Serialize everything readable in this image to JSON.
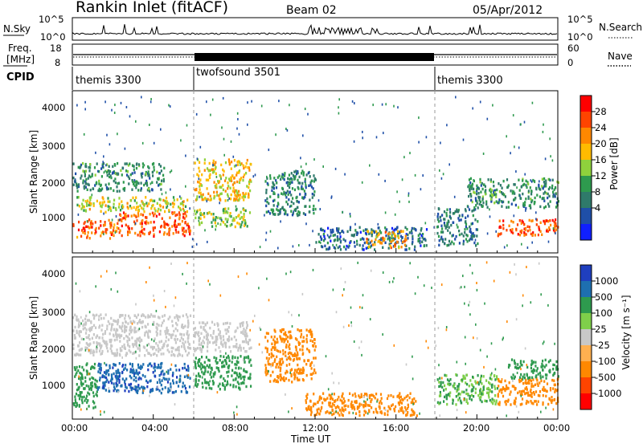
{
  "header": {
    "station": "Rankin Inlet (fitACF)",
    "beam": "Beam 02",
    "date": "05/Apr/2012"
  },
  "nsky_panel": {
    "left_label": "N.Sky",
    "right_label": "N.Search",
    "left_ticks": [
      "10^5",
      "10^0"
    ],
    "right_ticks": [
      "10^5",
      "10^0"
    ]
  },
  "freq_panel": {
    "left_label_1": "Freq.",
    "left_label_2": "[MHz]",
    "right_label": "Nave",
    "left_ticks": [
      "18",
      "8"
    ],
    "right_ticks": [
      "60",
      "0"
    ]
  },
  "cpid_panel": {
    "label": "CPID",
    "segments": [
      {
        "name": "themis 3300",
        "start_hour": 0
      },
      {
        "name": "twofsound 3501",
        "start_hour": 6
      },
      {
        "name": "themis 3300",
        "start_hour": 18
      }
    ]
  },
  "power_panel": {
    "ylabel": "Slant Range [km]",
    "yticks": [
      "4000",
      "3000",
      "2000",
      "1000"
    ],
    "colorbar_label": "Power [dB]",
    "colorbar_ticks": [
      "28",
      "24",
      "20",
      "16",
      "12",
      "8",
      "4"
    ],
    "colors": [
      "#ff0000",
      "#ff4400",
      "#ff8800",
      "#ffbb00",
      "#8fd23c",
      "#2e9a4e",
      "#2f7a6a",
      "#1f4fa8",
      "#1020ff"
    ]
  },
  "velocity_panel": {
    "ylabel": "Slant Range [km]",
    "yticks": [
      "4000",
      "3000",
      "2000",
      "1000"
    ],
    "colorbar_label": "Velocity [m s⁻¹]",
    "colorbar_ticks": [
      "1000",
      "500",
      "100",
      "25",
      "-25",
      "-100",
      "-500",
      "-1000"
    ],
    "colors": [
      "#1f3fbf",
      "#1e6fb0",
      "#2e9a4e",
      "#7fcf4a",
      "#c8c8c8",
      "#ffb050",
      "#ff8800",
      "#ff4400",
      "#ff0000"
    ]
  },
  "xaxis": {
    "label": "Time UT",
    "ticks": [
      "00:00",
      "04:00",
      "08:00",
      "12:00",
      "16:00",
      "20:00",
      "00:00"
    ]
  },
  "chart_data": {
    "type": "heatmap",
    "x_range_hours": [
      0,
      24
    ],
    "y_range_km": [
      180,
      4500
    ],
    "power_regions": [
      {
        "t": [
          0.0,
          2.3
        ],
        "range_km": [
          600,
          1100
        ],
        "power_db": 26
      },
      {
        "t": [
          2.3,
          5.8
        ],
        "range_km": [
          650,
          1300
        ],
        "power_db": 27
      },
      {
        "t": [
          0.2,
          5.8
        ],
        "range_km": [
          1300,
          1700
        ],
        "power_db": 18
      },
      {
        "t": [
          0.0,
          4.5
        ],
        "range_km": [
          1850,
          2600
        ],
        "power_db": 10
      },
      {
        "t": [
          6.0,
          8.8
        ],
        "range_km": [
          900,
          1400
        ],
        "power_db": 16
      },
      {
        "t": [
          6.0,
          8.8
        ],
        "range_km": [
          1600,
          2700
        ],
        "power_db": 20
      },
      {
        "t": [
          9.5,
          12.0
        ],
        "range_km": [
          1200,
          2400
        ],
        "power_db": 9
      },
      {
        "t": [
          12.0,
          17.5
        ],
        "range_km": [
          300,
          900
        ],
        "power_db": 6
      },
      {
        "t": [
          14.5,
          16.5
        ],
        "range_km": [
          350,
          800
        ],
        "power_db": 22
      },
      {
        "t": [
          18.0,
          20.0
        ],
        "range_km": [
          400,
          1400
        ],
        "power_db": 8
      },
      {
        "t": [
          21.0,
          24.0
        ],
        "range_km": [
          650,
          1100
        ],
        "power_db": 27
      },
      {
        "t": [
          19.5,
          24.0
        ],
        "range_km": [
          1400,
          2200
        ],
        "power_db": 10
      }
    ],
    "velocity_regions": [
      {
        "t": [
          0.0,
          1.2
        ],
        "range_km": [
          500,
          1700
        ],
        "velocity": 150
      },
      {
        "t": [
          1.2,
          5.8
        ],
        "range_km": [
          900,
          1700
        ],
        "velocity": 900
      },
      {
        "t": [
          0.0,
          5.8
        ],
        "range_km": [
          1900,
          3000
        ],
        "velocity": 0
      },
      {
        "t": [
          6.0,
          8.8
        ],
        "range_km": [
          1000,
          1900
        ],
        "velocity": 150
      },
      {
        "t": [
          6.0,
          8.8
        ],
        "range_km": [
          2000,
          2800
        ],
        "velocity": 0
      },
      {
        "t": [
          9.5,
          12.0
        ],
        "range_km": [
          1200,
          2600
        ],
        "velocity": -300
      },
      {
        "t": [
          11.5,
          17.0
        ],
        "range_km": [
          300,
          900
        ],
        "velocity": -300
      },
      {
        "t": [
          18.0,
          21.0
        ],
        "range_km": [
          600,
          1400
        ],
        "velocity": 100
      },
      {
        "t": [
          21.0,
          24.0
        ],
        "range_km": [
          600,
          1300
        ],
        "velocity": -350
      },
      {
        "t": [
          21.5,
          24.0
        ],
        "range_km": [
          1300,
          1800
        ],
        "velocity": 200
      }
    ]
  }
}
